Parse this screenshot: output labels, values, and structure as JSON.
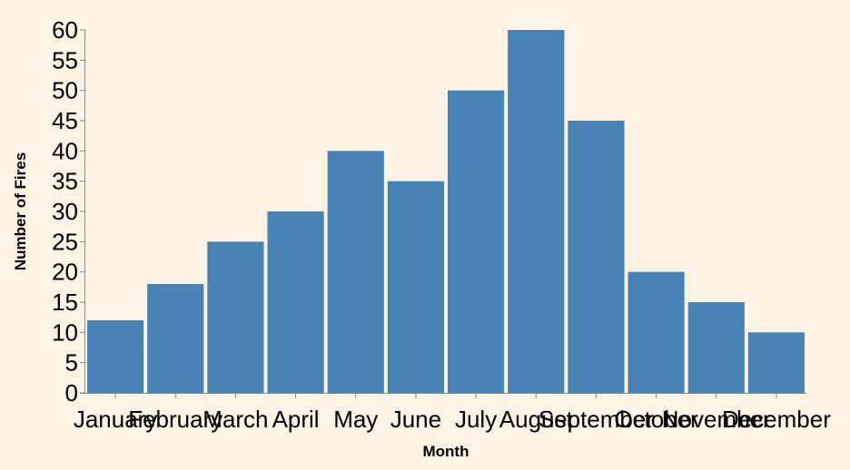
{
  "chart_data": {
    "type": "bar",
    "categories": [
      "January",
      "February",
      "March",
      "April",
      "May",
      "June",
      "July",
      "August",
      "September",
      "October",
      "November",
      "December"
    ],
    "values": [
      12,
      18,
      25,
      30,
      40,
      35,
      50,
      60,
      45,
      20,
      15,
      10
    ],
    "title": "",
    "xlabel": "Month",
    "ylabel": "Number of Fires",
    "ylim": [
      0,
      60
    ],
    "yticks": [
      0,
      5,
      10,
      15,
      20,
      25,
      30,
      35,
      40,
      45,
      50,
      55,
      60
    ],
    "grid": false,
    "bar_color": "#4682b4",
    "background_color": "#fdf3e5",
    "axis_color": "#888888"
  }
}
